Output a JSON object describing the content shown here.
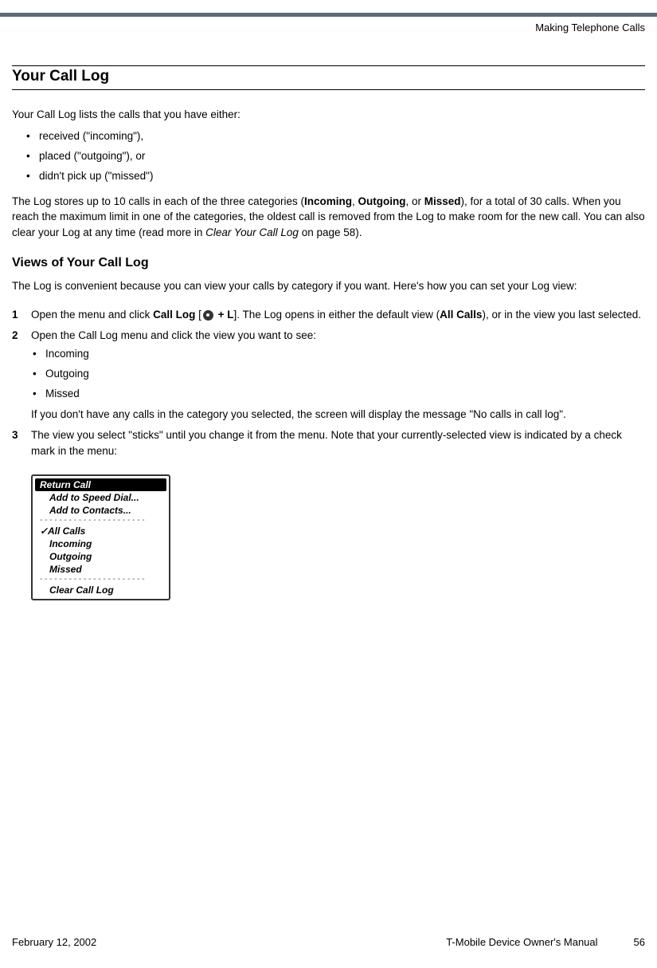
{
  "header": {
    "chapter": "Making Telephone Calls"
  },
  "section": {
    "title": "Your Call Log",
    "intro": "Your Call Log lists the calls that you have either:",
    "bullets": [
      "received (\"incoming\"),",
      "placed (\"outgoing\"), or",
      "didn't pick up (\"missed\")"
    ],
    "para1_a": "The Log stores up to 10 calls in each of the three categories (",
    "para1_bold1": "Incoming",
    "para1_b": ", ",
    "para1_bold2": "Outgoing",
    "para1_c": ", or ",
    "para1_bold3": "Missed",
    "para1_d": "), for a total of 30 calls. When you reach the maximum limit in one of the categories, the oldest call is removed from the Log to make room for the new call. You can also clear your Log at any time (read more in ",
    "para1_italic": "Clear Your Call Log",
    "para1_e": " on page 58)."
  },
  "subsection": {
    "title": "Views of Your Call Log",
    "intro": "The Log is convenient because you can view your calls by category if you want. Here's how you can set your Log view:",
    "step1_a": "Open the menu and click ",
    "step1_bold1": "Call Log",
    "step1_b": " [",
    "step1_c": " + L",
    "step1_d": "]. The Log opens in either the default view (",
    "step1_bold2": "All Calls",
    "step1_e": "), or in the view you last selected.",
    "step2_a": "Open the Call Log menu and click the view you want to see:",
    "step2_bullets": [
      "Incoming",
      "Outgoing",
      "Missed"
    ],
    "step2_b": "If you don't have any calls in the category you selected, the screen will display the message \"No calls in call log\".",
    "step3": "The view you select \"sticks\" until you change it from the menu. Note that your currently-selected view is indicated by a check mark in the menu:"
  },
  "menu": {
    "items": [
      {
        "label": "Return Call",
        "type": "highlight"
      },
      {
        "label": "Add to Speed Dial...",
        "type": "indent"
      },
      {
        "label": "Add to Contacts...",
        "type": "indent"
      },
      {
        "label": "---",
        "type": "divider"
      },
      {
        "label": "All Calls",
        "type": "checked"
      },
      {
        "label": "Incoming",
        "type": "indent"
      },
      {
        "label": "Outgoing",
        "type": "indent"
      },
      {
        "label": "Missed",
        "type": "indent"
      },
      {
        "label": "---",
        "type": "divider"
      },
      {
        "label": "Clear Call Log",
        "type": "indent"
      }
    ]
  },
  "footer": {
    "date": "February 12, 2002",
    "manual": "T-Mobile Device Owner's Manual",
    "page": "56"
  }
}
